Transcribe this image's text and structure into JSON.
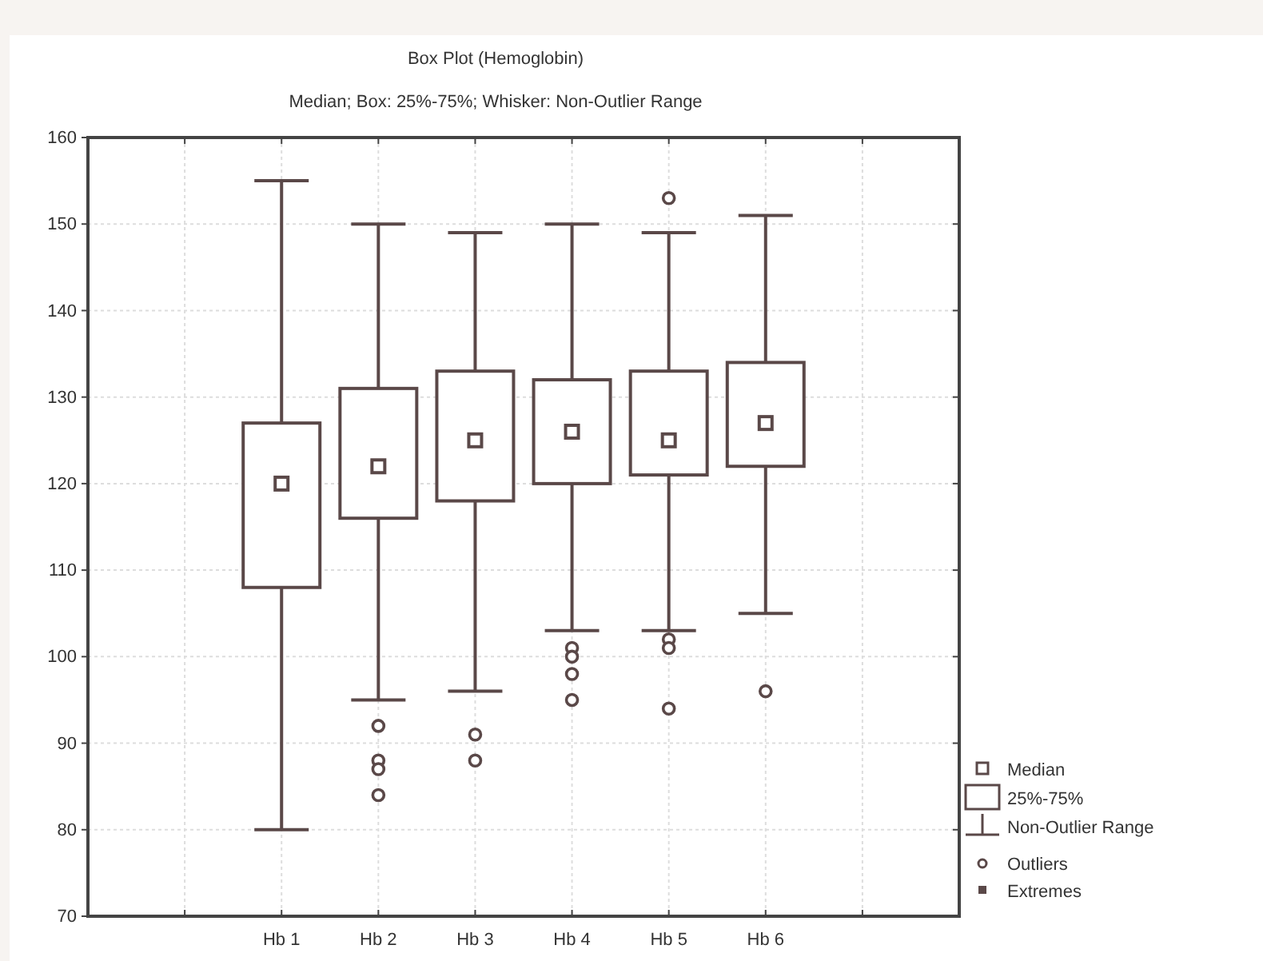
{
  "chart_data": {
    "type": "box",
    "title": "Box Plot (Hemoglobin)",
    "subtitle": "Median; Box: 25%-75%; Whisker: Non-Outlier Range",
    "categories": [
      null,
      "Hb 1",
      "Hb 2",
      "Hb 3",
      "Hb 4",
      "Hb 5",
      "Hb 6",
      null
    ],
    "boxes": [
      null,
      {
        "low": 80,
        "q1": 108,
        "median": 120,
        "q3": 127,
        "high": 155
      },
      {
        "low": 95,
        "q1": 116,
        "median": 122,
        "q3": 131,
        "high": 150,
        "outliers": [
          92,
          88,
          87,
          84
        ]
      },
      {
        "low": 96,
        "q1": 118,
        "median": 125,
        "q3": 133,
        "high": 149,
        "outliers": [
          91,
          88
        ]
      },
      {
        "low": 103,
        "q1": 120,
        "median": 126,
        "q3": 132,
        "high": 150,
        "outliers": [
          101,
          100,
          98,
          95
        ]
      },
      {
        "low": 103,
        "q1": 121,
        "median": 125,
        "q3": 133,
        "high": 149,
        "outliers": [
          153,
          102,
          101,
          94
        ]
      },
      {
        "low": 105,
        "q1": 122,
        "median": 127,
        "q3": 134,
        "high": 151,
        "outliers": [
          96
        ]
      },
      null
    ],
    "color": "#5a4848",
    "ylim": [
      70,
      160
    ],
    "yticks": [
      70,
      80,
      90,
      100,
      110,
      120,
      130,
      140,
      150,
      160
    ],
    "grid": true,
    "annotations": [
      "Median",
      "25%-75%",
      "Non-Outlier Range",
      "Outliers",
      "Extremes"
    ]
  }
}
